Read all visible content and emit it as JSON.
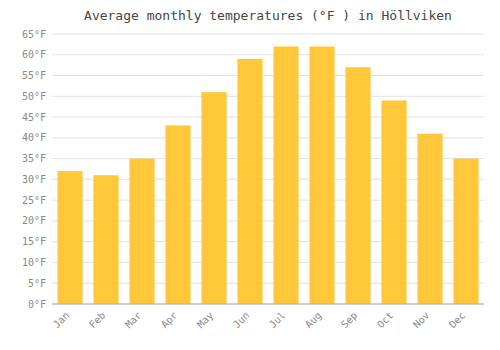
{
  "chart_data": {
    "type": "bar",
    "title": "Average monthly temperatures (°F ) in Höllviken",
    "categories": [
      "Jan",
      "Feb",
      "Mar",
      "Apr",
      "May",
      "Jun",
      "Jul",
      "Aug",
      "Sep",
      "Oct",
      "Nov",
      "Dec"
    ],
    "values": [
      32,
      31,
      35,
      43,
      51,
      59,
      62,
      62,
      57,
      49,
      41,
      35
    ],
    "color": "#FFC83A",
    "ylim": [
      0,
      65
    ],
    "yticks": [
      {
        "value": 0,
        "label": "0°F"
      },
      {
        "value": 5,
        "label": "5°F"
      },
      {
        "value": 10,
        "label": "10°F"
      },
      {
        "value": 15,
        "label": "15°F"
      },
      {
        "value": 20,
        "label": "20°F"
      },
      {
        "value": 25,
        "label": "25°F"
      },
      {
        "value": 30,
        "label": "30°F"
      },
      {
        "value": 35,
        "label": "35°F"
      },
      {
        "value": 40,
        "label": "40°F"
      },
      {
        "value": 45,
        "label": "45°F"
      },
      {
        "value": 50,
        "label": "50°F"
      },
      {
        "value": 55,
        "label": "55°F"
      },
      {
        "value": 60,
        "label": "60°F"
      },
      {
        "value": 65,
        "label": "65°F"
      }
    ],
    "grid": true
  }
}
